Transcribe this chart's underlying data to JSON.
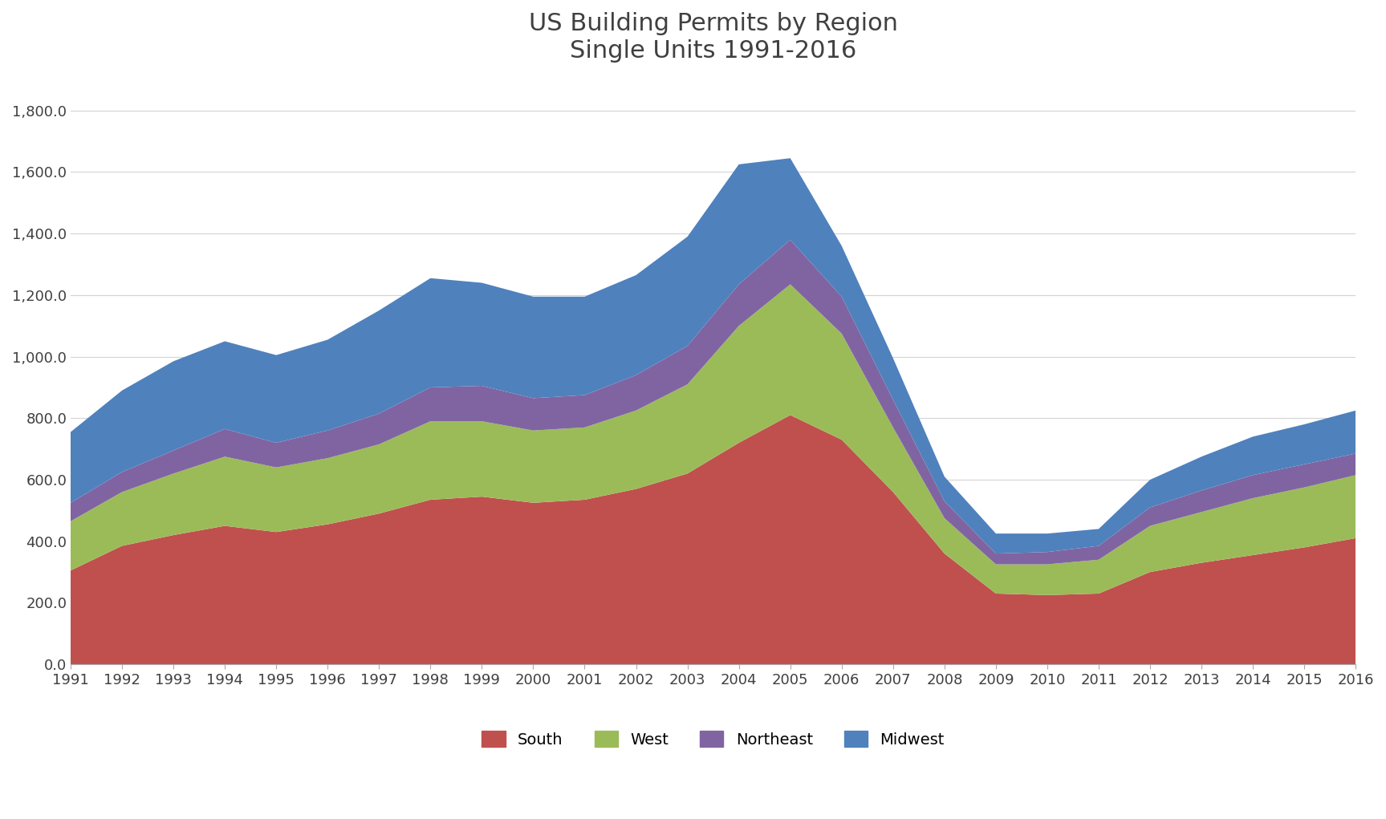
{
  "title": "US Building Permits by Region\nSingle Units 1991-2016",
  "years": [
    1991,
    1992,
    1993,
    1994,
    1995,
    1996,
    1997,
    1998,
    1999,
    2000,
    2001,
    2002,
    2003,
    2004,
    2005,
    2006,
    2007,
    2008,
    2009,
    2010,
    2011,
    2012,
    2013,
    2014,
    2015,
    2016
  ],
  "south": [
    305,
    385,
    420,
    450,
    430,
    455,
    490,
    535,
    545,
    525,
    535,
    570,
    620,
    720,
    810,
    730,
    560,
    360,
    230,
    225,
    230,
    300,
    330,
    355,
    380,
    410
  ],
  "west": [
    160,
    175,
    200,
    225,
    210,
    215,
    225,
    255,
    245,
    235,
    235,
    255,
    290,
    380,
    425,
    345,
    210,
    115,
    95,
    100,
    110,
    150,
    165,
    185,
    195,
    205
  ],
  "northeast": [
    60,
    65,
    75,
    90,
    80,
    90,
    100,
    110,
    115,
    105,
    105,
    115,
    125,
    135,
    145,
    120,
    90,
    55,
    35,
    40,
    45,
    60,
    70,
    75,
    75,
    70
  ],
  "midwest": [
    230,
    265,
    290,
    285,
    285,
    295,
    335,
    355,
    335,
    330,
    320,
    325,
    355,
    390,
    265,
    165,
    135,
    80,
    65,
    60,
    55,
    90,
    110,
    125,
    130,
    140
  ],
  "colors": {
    "south": "#C0504D",
    "west": "#9BBB59",
    "northeast": "#8064A2",
    "midwest": "#4F81BD"
  },
  "ylim": [
    0,
    1900
  ],
  "yticks": [
    0,
    200,
    400,
    600,
    800,
    1000,
    1200,
    1400,
    1600,
    1800
  ],
  "background_color": "#FFFFFF",
  "grid_color": "#D3D3D3",
  "title_fontsize": 22,
  "tick_fontsize": 13,
  "legend_fontsize": 14
}
